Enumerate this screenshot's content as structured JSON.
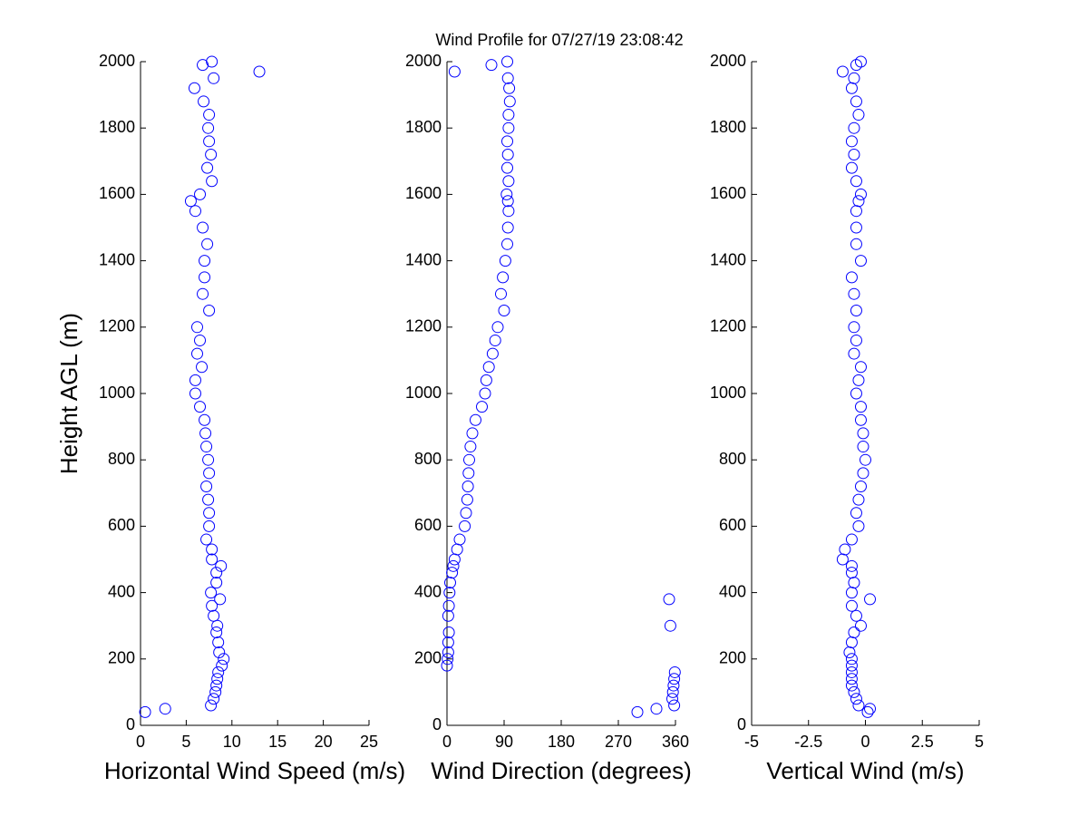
{
  "title": "Wind Profile for  07/27/19 23:08:42",
  "chart_data": [
    {
      "type": "scatter",
      "xlabel": "Horizontal Wind Speed (m/s)",
      "ylabel": "Height AGL (m)",
      "color": "#0000ff",
      "xlim": [
        0,
        25
      ],
      "xticks": [
        0,
        5,
        10,
        15,
        20,
        25
      ],
      "ylim": [
        0,
        2000
      ],
      "yticks": [
        0,
        200,
        400,
        600,
        800,
        1000,
        1200,
        1400,
        1600,
        1800,
        2000
      ],
      "x": [
        0.5,
        2.7,
        7.7,
        8.0,
        8.2,
        8.3,
        8.4,
        8.5,
        8.9,
        9.1,
        8.6,
        8.5,
        8.3,
        8.4,
        8.0,
        7.8,
        8.7,
        7.7,
        8.3,
        8.3,
        8.8,
        7.8,
        7.8,
        7.2,
        7.5,
        7.5,
        7.4,
        7.2,
        7.5,
        7.4,
        7.2,
        7.1,
        7.0,
        6.5,
        6.0,
        6.0,
        6.7,
        6.2,
        6.5,
        6.2,
        7.5,
        6.8,
        7.0,
        7.0,
        7.3,
        6.8,
        6.0,
        5.5,
        6.5,
        7.8,
        7.3,
        7.7,
        7.5,
        7.4,
        7.5,
        6.9,
        5.9,
        8.0,
        13.0,
        6.8,
        7.8
      ],
      "y": [
        40,
        50,
        60,
        80,
        100,
        120,
        140,
        160,
        180,
        200,
        220,
        250,
        280,
        300,
        330,
        360,
        380,
        400,
        430,
        460,
        480,
        500,
        530,
        560,
        600,
        640,
        680,
        720,
        760,
        800,
        840,
        880,
        920,
        960,
        1000,
        1040,
        1080,
        1120,
        1160,
        1200,
        1250,
        1300,
        1350,
        1400,
        1450,
        1500,
        1550,
        1580,
        1600,
        1640,
        1680,
        1720,
        1760,
        1800,
        1840,
        1880,
        1920,
        1950,
        1970,
        1990,
        2000
      ]
    },
    {
      "type": "scatter",
      "xlabel": "Wind Direction (degrees)",
      "color": "#0000ff",
      "xlim": [
        0,
        360
      ],
      "xticks": [
        0,
        90,
        180,
        270,
        360
      ],
      "ylim": [
        0,
        2000
      ],
      "yticks": [
        0,
        200,
        400,
        600,
        800,
        1000,
        1200,
        1400,
        1600,
        1800,
        2000
      ],
      "x": [
        300,
        330,
        358,
        355,
        356,
        357,
        358,
        359,
        0,
        1,
        2,
        2,
        3,
        352,
        2,
        3,
        350,
        4,
        5,
        8,
        10,
        12,
        16,
        20,
        28,
        30,
        32,
        33,
        34,
        35,
        37,
        40,
        45,
        55,
        60,
        62,
        66,
        72,
        76,
        80,
        90,
        85,
        88,
        92,
        95,
        96,
        97,
        96,
        94,
        97,
        95,
        96,
        95,
        97,
        97,
        99,
        98,
        96,
        12,
        70,
        95
      ],
      "y": [
        40,
        50,
        60,
        80,
        100,
        120,
        140,
        160,
        180,
        200,
        220,
        250,
        280,
        300,
        330,
        360,
        380,
        400,
        430,
        460,
        480,
        500,
        530,
        560,
        600,
        640,
        680,
        720,
        760,
        800,
        840,
        880,
        920,
        960,
        1000,
        1040,
        1080,
        1120,
        1160,
        1200,
        1250,
        1300,
        1350,
        1400,
        1450,
        1500,
        1550,
        1580,
        1600,
        1640,
        1680,
        1720,
        1760,
        1800,
        1840,
        1880,
        1920,
        1950,
        1970,
        1990,
        2000
      ]
    },
    {
      "type": "scatter",
      "xlabel": "Vertical Wind (m/s)",
      "color": "#0000ff",
      "xlim": [
        -5,
        5
      ],
      "xticks": [
        -5,
        -2.5,
        0,
        2.5,
        5
      ],
      "ylim": [
        0,
        2000
      ],
      "yticks": [
        0,
        200,
        400,
        600,
        800,
        1000,
        1200,
        1400,
        1600,
        1800,
        2000
      ],
      "x": [
        0.1,
        0.2,
        -0.3,
        -0.4,
        -0.5,
        -0.6,
        -0.6,
        -0.6,
        -0.6,
        -0.6,
        -0.7,
        -0.6,
        -0.5,
        -0.2,
        -0.4,
        -0.6,
        0.2,
        -0.6,
        -0.5,
        -0.6,
        -0.6,
        -1.0,
        -0.9,
        -0.6,
        -0.3,
        -0.4,
        -0.3,
        -0.2,
        -0.1,
        0.0,
        -0.1,
        -0.1,
        -0.2,
        -0.2,
        -0.4,
        -0.3,
        -0.2,
        -0.5,
        -0.4,
        -0.5,
        -0.4,
        -0.5,
        -0.6,
        -0.2,
        -0.4,
        -0.4,
        -0.4,
        -0.3,
        -0.2,
        -0.4,
        -0.6,
        -0.5,
        -0.6,
        -0.5,
        -0.3,
        -0.4,
        -0.6,
        -0.5,
        -1.0,
        -0.4,
        -0.2
      ],
      "y": [
        40,
        50,
        60,
        80,
        100,
        120,
        140,
        160,
        180,
        200,
        220,
        250,
        280,
        300,
        330,
        360,
        380,
        400,
        430,
        460,
        480,
        500,
        530,
        560,
        600,
        640,
        680,
        720,
        760,
        800,
        840,
        880,
        920,
        960,
        1000,
        1040,
        1080,
        1120,
        1160,
        1200,
        1250,
        1300,
        1350,
        1400,
        1450,
        1500,
        1550,
        1580,
        1600,
        1640,
        1680,
        1720,
        1760,
        1800,
        1840,
        1880,
        1920,
        1950,
        1970,
        1990,
        2000
      ]
    }
  ]
}
